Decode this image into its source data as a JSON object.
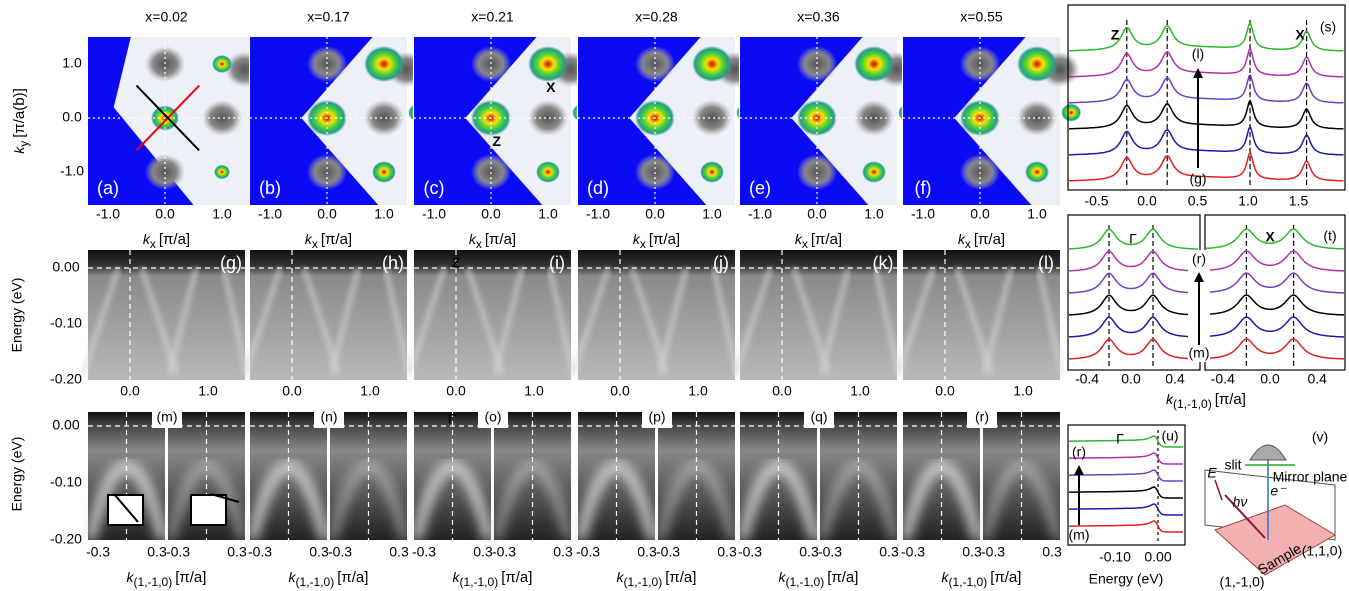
{
  "columns": [
    {
      "title": "x=0.02",
      "panels": [
        "(a)",
        "(g)",
        "(m)"
      ]
    },
    {
      "title": "x=0.17",
      "panels": [
        "(b)",
        "(h)",
        "(n)"
      ]
    },
    {
      "title": "x=0.21",
      "panels": [
        "(c)",
        "(i)",
        "(o)"
      ]
    },
    {
      "title": "x=0.28",
      "panels": [
        "(d)",
        "(j)",
        "(p)"
      ]
    },
    {
      "title": "x=0.36",
      "panels": [
        "(e)",
        "(k)",
        "(q)"
      ]
    },
    {
      "title": "x=0.55",
      "panels": [
        "(f)",
        "(l)",
        "(r)"
      ]
    }
  ],
  "fermi_surface": {
    "y_label": "k",
    "y_label_sub": "y",
    "y_label_unit": "[π/a(b)]",
    "x_label": "k",
    "x_label_sub": "x",
    "x_label_unit": "[π/a]",
    "xticks": [
      "-1.0",
      "0.0",
      "1.0"
    ],
    "yticks": [
      "1.0",
      "0.0",
      "-1.0"
    ],
    "point_x": "X",
    "point_z": "Z"
  },
  "cut_kx": {
    "y_label": "Energy (eV)",
    "yticks": [
      "0.00",
      "-0.10",
      "-0.20"
    ],
    "xticks": [
      "0.0",
      "1.0"
    ],
    "point": "Z"
  },
  "cut_k110": {
    "y_label": "Energy (eV)",
    "yticks": [
      "0.00",
      "-0.10",
      "-0.20"
    ],
    "xticks": [
      "-0.3",
      "0.3"
    ],
    "x_label": "k",
    "x_label_sub": "(1,-1,0)",
    "x_label_unit": "[π/a]",
    "point": "Γ"
  },
  "panel_s": {
    "label": "(s)",
    "point_z": "Z",
    "point_x": "X",
    "top": "(l)",
    "bottom": "(g)",
    "xticks": [
      "-0.5",
      "0.0",
      "0.5",
      "1.0",
      "1.5"
    ]
  },
  "panel_t": {
    "label": "(t)",
    "point_g": "Γ",
    "point_x": "X",
    "top": "(r)",
    "bottom": "(m)",
    "xticks": [
      "-0.4",
      "0.0",
      "0.4"
    ],
    "x_label": "k",
    "x_label_sub": "(1,-1,0)",
    "x_label_unit": "[π/a]"
  },
  "panel_u": {
    "label": "(u)",
    "point": "Γ",
    "top": "(r)",
    "bottom": "(m)",
    "xticks": [
      "-0.10",
      "0.00"
    ],
    "x_label": "Energy (eV)"
  },
  "panel_v": {
    "label": "(v)",
    "slit": "slit",
    "mirror": "Mirror plane",
    "electron": "e⁻",
    "photon": "hν",
    "field": "E",
    "sample": "Sample",
    "dir1": "(1,1,0)",
    "dir2": "(1,-1,0)"
  }
}
